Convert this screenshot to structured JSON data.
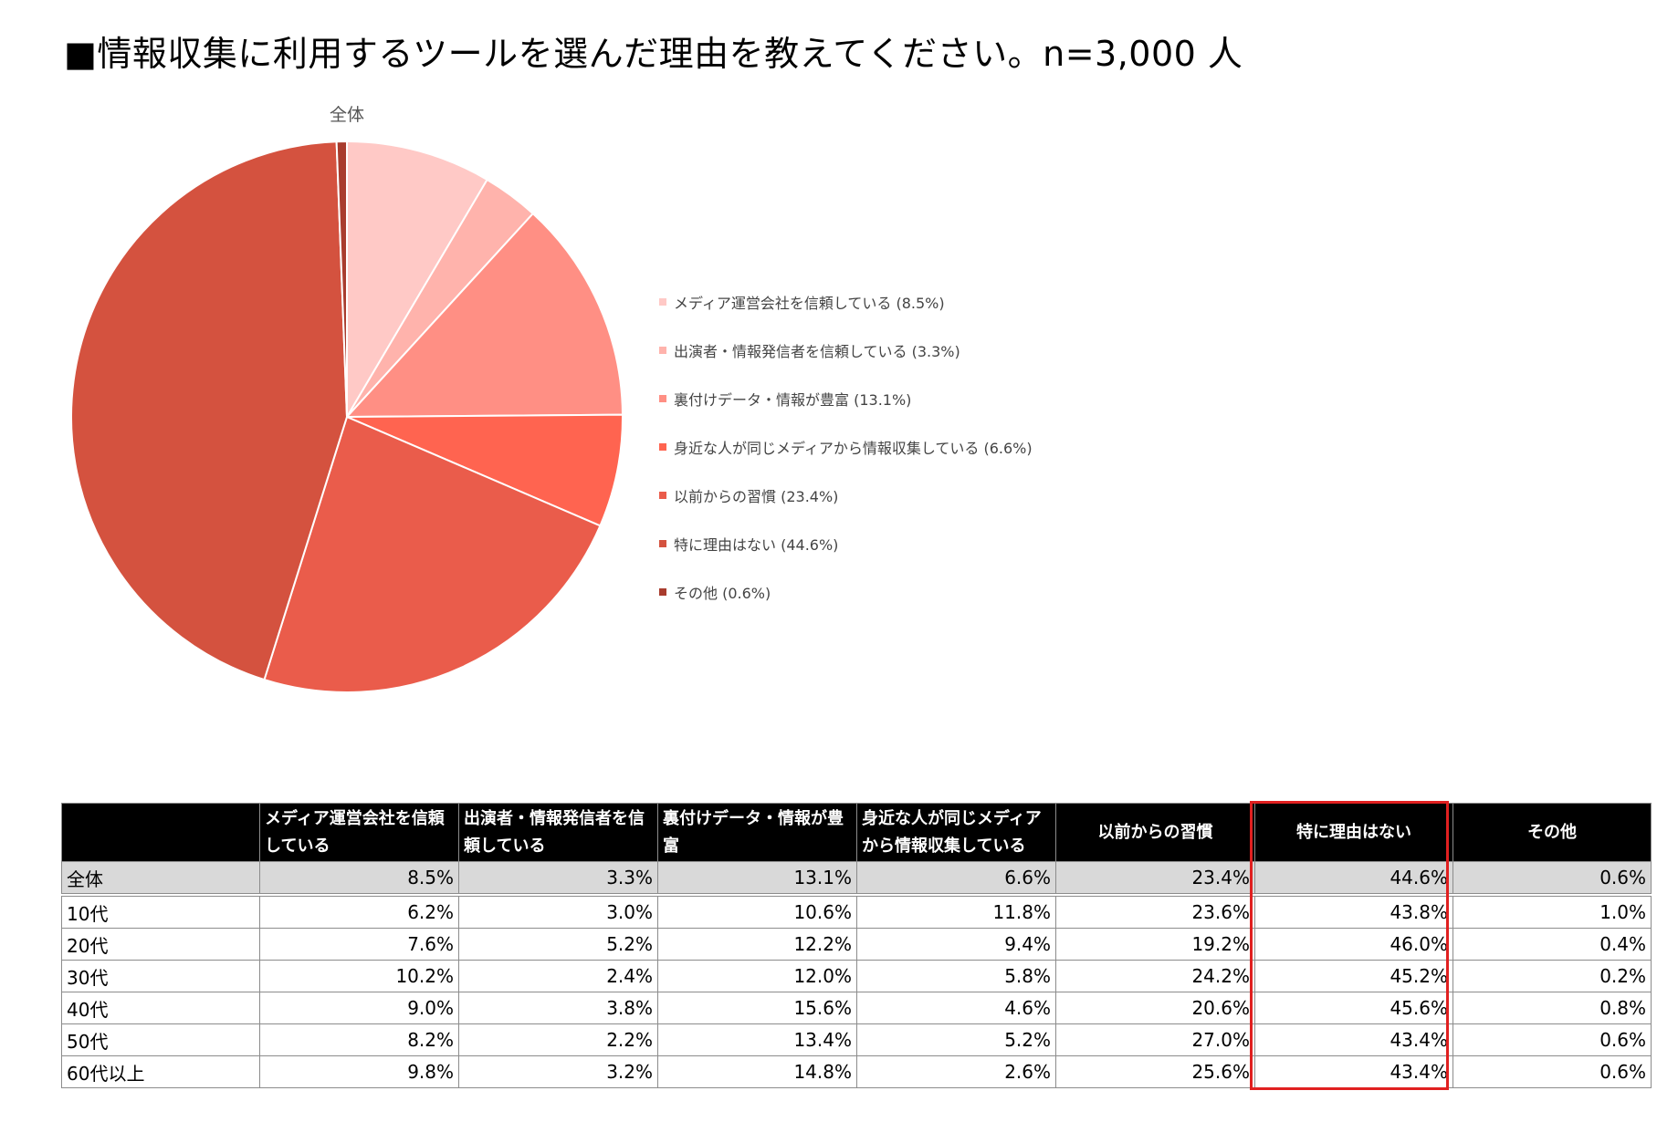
{
  "title": "■情報収集に利用するツールを選んだ理由を教えてください。n=3,000 人",
  "chart_data": {
    "type": "pie",
    "title": "全体",
    "legend_position": "right",
    "slices": [
      {
        "label": "メディア運営会社を信頼している",
        "value": 8.5,
        "color": "#ffc9c6",
        "legend": "メディア運営会社を信頼している (8.5%)"
      },
      {
        "label": "出演者・情報発信者を信頼している",
        "value": 3.3,
        "color": "#ffb3ac",
        "legend": "出演者・情報発信者を信頼している (3.3%)"
      },
      {
        "label": "裏付けデータ・情報が豊富",
        "value": 13.1,
        "color": "#ff8f84",
        "legend": "裏付けデータ・情報が豊富 (13.1%)"
      },
      {
        "label": "身近な人が同じメディアから情報収集している",
        "value": 6.6,
        "color": "#ff6450",
        "legend": "身近な人が同じメディアから情報収集している (6.6%)"
      },
      {
        "label": "以前からの習慣",
        "value": 23.4,
        "color": "#ea5c4b",
        "legend": "以前からの習慣 (23.4%)"
      },
      {
        "label": "特に理由はない",
        "value": 44.6,
        "color": "#d4523f",
        "legend": "特に理由はない (44.6%)"
      },
      {
        "label": "その他",
        "value": 0.6,
        "color": "#a93c2e",
        "legend": "その他 (0.6%)"
      }
    ]
  },
  "table": {
    "headers": [
      "",
      "メディア運営会社を信頼している",
      "出演者・情報発信者を信頼している",
      "裏付けデータ・情報が豊富",
      "身近な人が同じメディアから情報収集している",
      "以前からの習慣",
      "特に理由はない",
      "その他"
    ],
    "rows": [
      [
        "全体",
        "8.5%",
        "3.3%",
        "13.1%",
        "6.6%",
        "23.4%",
        "44.6%",
        "0.6%"
      ],
      [
        "10代",
        "6.2%",
        "3.0%",
        "10.6%",
        "11.8%",
        "23.6%",
        "43.8%",
        "1.0%"
      ],
      [
        "20代",
        "7.6%",
        "5.2%",
        "12.2%",
        "9.4%",
        "19.2%",
        "46.0%",
        "0.4%"
      ],
      [
        "30代",
        "10.2%",
        "2.4%",
        "12.0%",
        "5.8%",
        "24.2%",
        "45.2%",
        "0.2%"
      ],
      [
        "40代",
        "9.0%",
        "3.8%",
        "15.6%",
        "4.6%",
        "20.6%",
        "45.6%",
        "0.8%"
      ],
      [
        "50代",
        "8.2%",
        "2.2%",
        "13.4%",
        "5.2%",
        "27.0%",
        "43.4%",
        "0.6%"
      ],
      [
        "60代以上",
        "9.8%",
        "3.2%",
        "14.8%",
        "2.6%",
        "25.6%",
        "43.4%",
        "0.6%"
      ]
    ],
    "highlight_column": "特に理由はない",
    "highlight_color": "#e02020"
  }
}
